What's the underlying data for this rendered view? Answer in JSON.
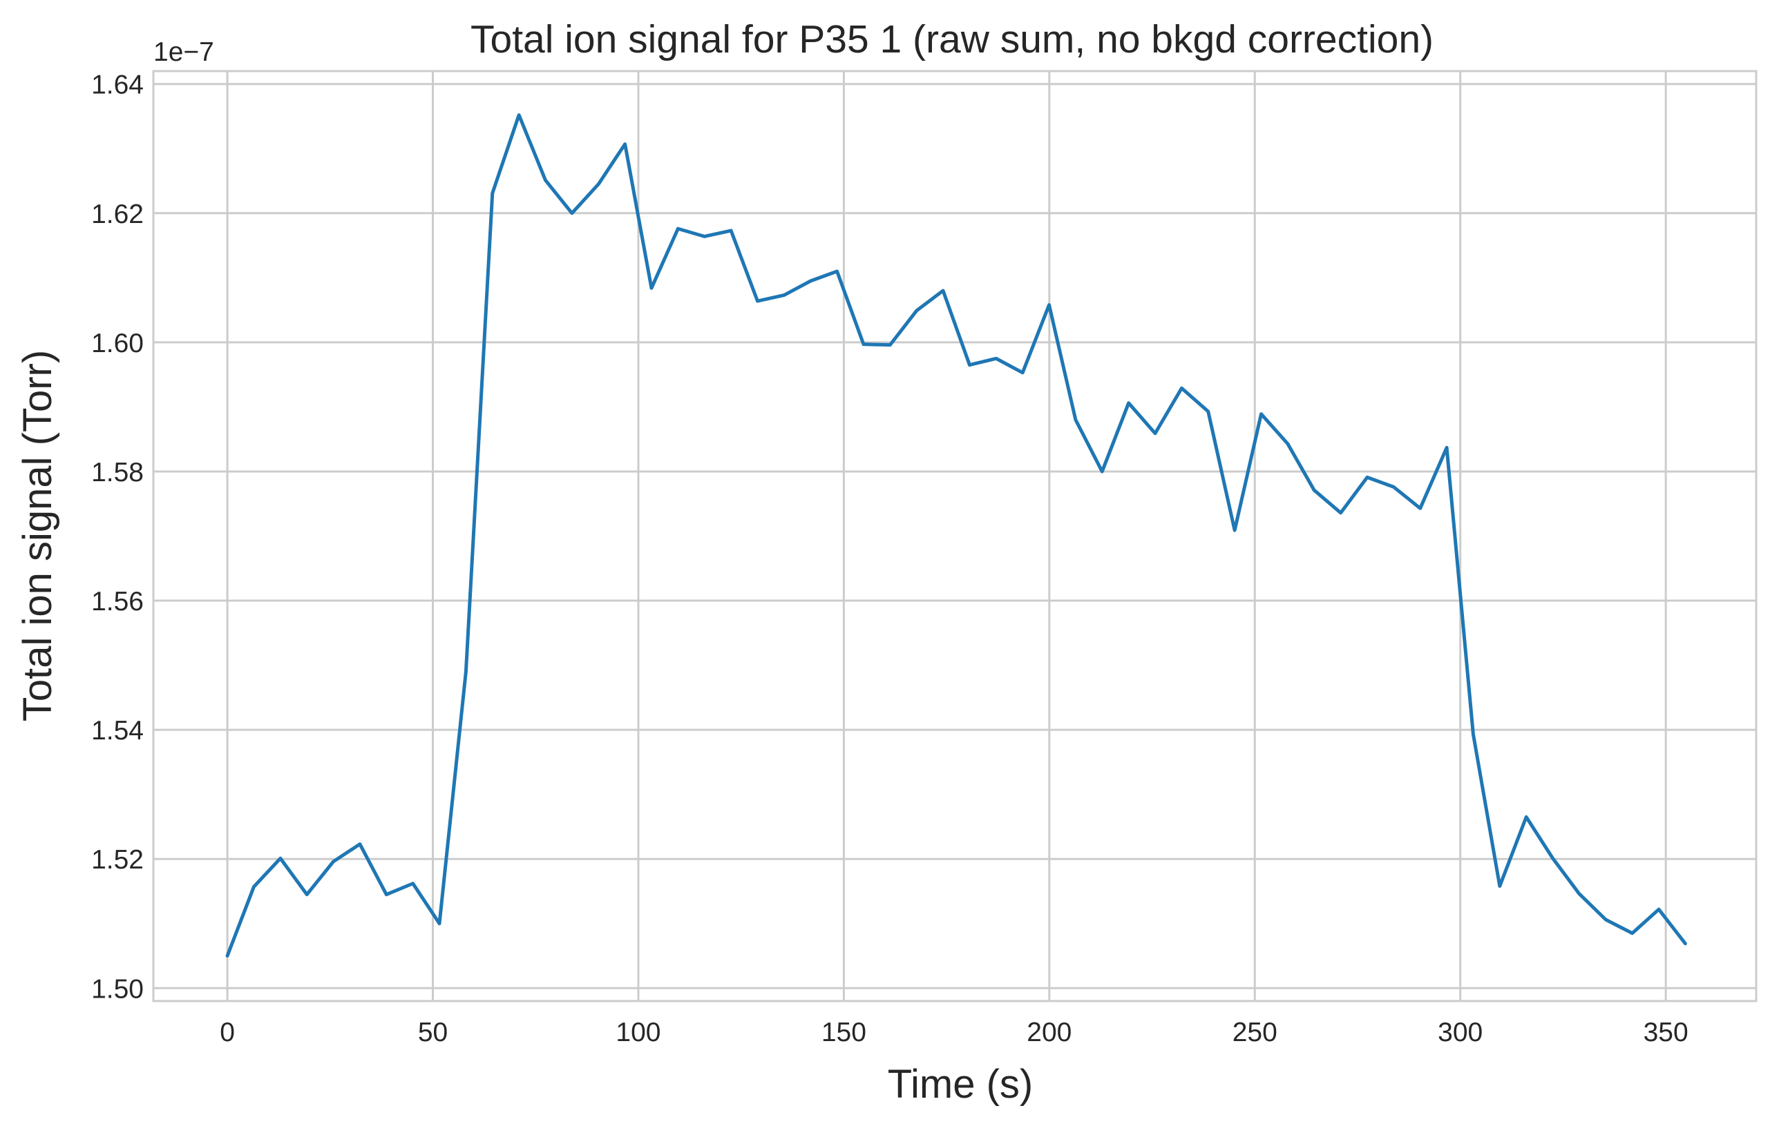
{
  "chart_data": {
    "type": "line",
    "title": "Total ion signal for P35 1 (raw sum, no bkgd correction)",
    "xlabel": "Time (s)",
    "ylabel": "Total ion signal (Torr)",
    "y_offset_label": "1e−7",
    "xlim": [
      -18,
      372
    ],
    "ylim": [
      1.498,
      1.642
    ],
    "xticks": [
      0,
      50,
      100,
      150,
      200,
      250,
      300,
      350
    ],
    "xtick_labels": [
      "0",
      "50",
      "100",
      "150",
      "200",
      "250",
      "300",
      "350"
    ],
    "yticks": [
      1.5,
      1.52,
      1.54,
      1.56,
      1.58,
      1.6,
      1.62,
      1.64
    ],
    "ytick_labels": [
      "1.50",
      "1.52",
      "1.54",
      "1.56",
      "1.58",
      "1.60",
      "1.62",
      "1.64"
    ],
    "grid": true,
    "legend": false,
    "line_color": "#1f77b4",
    "series": [
      {
        "x": [
          0,
          6.45,
          12.9,
          19.35,
          25.8,
          32.25,
          38.7,
          45.15,
          51.6,
          58.05,
          64.5,
          70.95,
          77.4,
          83.85,
          90.3,
          96.75,
          103.2,
          109.65,
          116.1,
          122.55,
          129.0,
          135.45,
          141.9,
          148.35,
          154.8,
          161.25,
          167.7,
          174.15,
          180.6,
          187.05,
          193.5,
          199.95,
          206.4,
          212.85,
          219.3,
          225.75,
          232.2,
          238.65,
          245.1,
          251.55,
          258.0,
          264.45,
          270.9,
          277.35,
          283.8,
          290.25,
          296.7,
          303.15,
          309.6,
          316.05,
          322.5,
          328.95,
          335.4,
          341.85,
          348.3,
          354.75
        ],
        "y": [
          1.505,
          1.5157,
          1.5201,
          1.5145,
          1.5196,
          1.5223,
          1.5145,
          1.5162,
          1.51,
          1.549,
          1.6231,
          1.6352,
          1.6251,
          1.62,
          1.6245,
          1.6307,
          1.6084,
          1.6176,
          1.6164,
          1.6173,
          1.6064,
          1.6073,
          1.6095,
          1.611,
          1.5997,
          1.5996,
          1.6049,
          1.608,
          1.5965,
          1.5975,
          1.5953,
          1.6058,
          1.588,
          1.58,
          1.5906,
          1.5859,
          1.5929,
          1.5893,
          1.5709,
          1.5889,
          1.5843,
          1.5771,
          1.5736,
          1.5791,
          1.5776,
          1.5743,
          1.5837,
          1.5393,
          1.5158,
          1.5265,
          1.5201,
          1.5146,
          1.5106,
          1.5085,
          1.5122,
          1.5069
        ]
      }
    ]
  }
}
